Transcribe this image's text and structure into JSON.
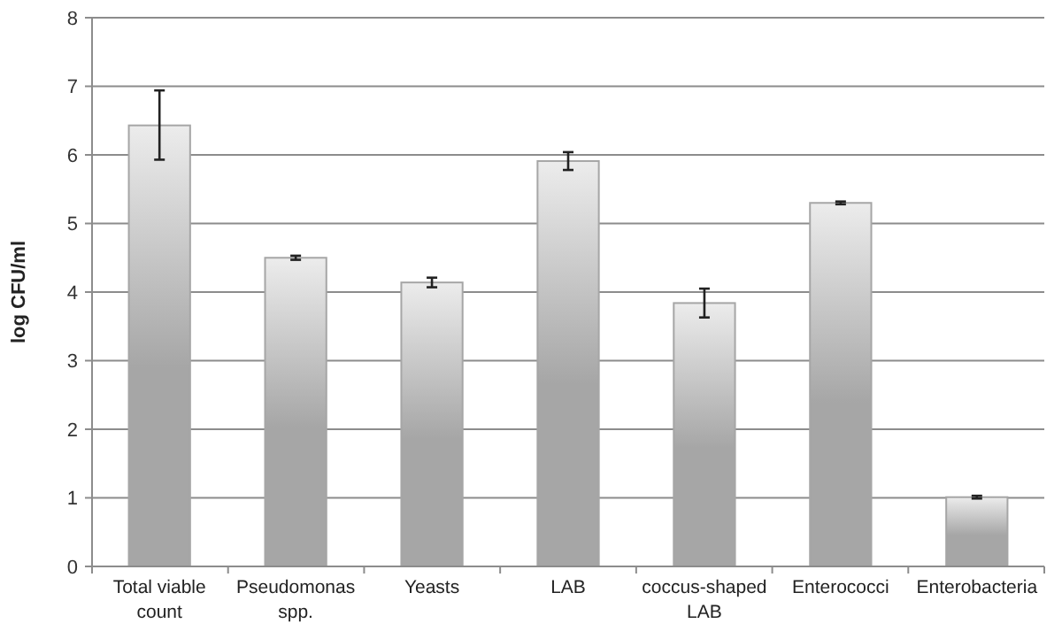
{
  "chart_data": {
    "type": "bar",
    "ylabel": "log CFU/ml",
    "categories": [
      "Total viable count",
      "Pseudomonas spp.",
      "Yeasts",
      "LAB",
      "coccus-shaped LAB",
      "Enterococci",
      "Enterobacteria"
    ],
    "values": [
      6.43,
      4.5,
      4.14,
      5.91,
      3.84,
      5.3,
      1.01
    ],
    "errors": [
      [
        5.93,
        6.94
      ],
      0.03,
      0.07,
      0.13,
      0.21,
      0.02,
      0.02
    ],
    "color": "#a6a6a6",
    "ylim": [
      0,
      8
    ],
    "yticks": [
      0,
      1,
      2,
      3,
      4,
      5,
      6,
      7,
      8
    ],
    "grid": "y"
  }
}
